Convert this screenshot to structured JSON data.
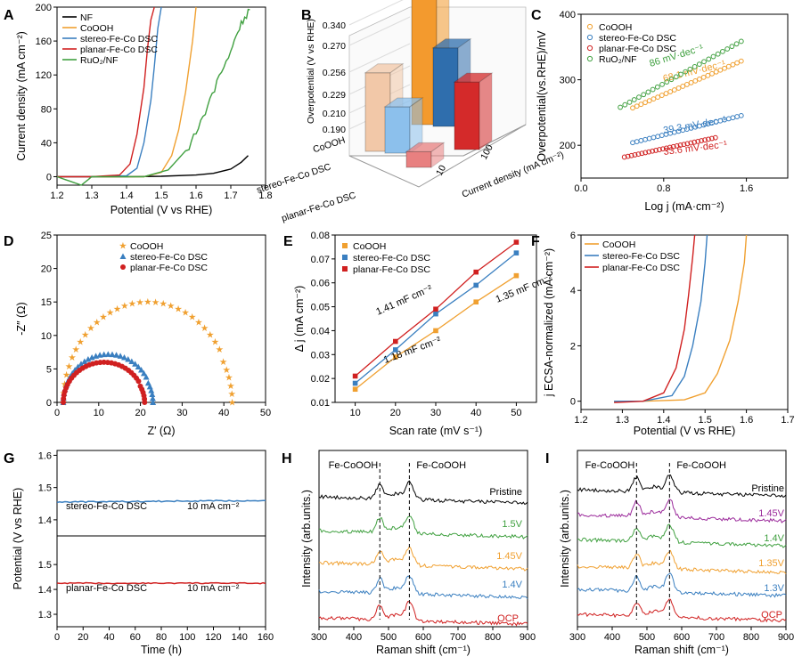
{
  "panels": {
    "A": {
      "label": "A",
      "xlabel": "Potential (V vs RHE)",
      "ylabel": "Current density (mA cm⁻²)",
      "xticks": [
        "1.2",
        "1.3",
        "1.4",
        "1.5",
        "1.6",
        "1.7",
        "1.8"
      ],
      "yticks": [
        "0",
        "40",
        "80",
        "120",
        "160",
        "200"
      ]
    },
    "B": {
      "label": "B",
      "zlabel": "Overpotential (V vs RHE)",
      "zticks": [
        "0.190",
        "0.210",
        "0.229",
        "0.256",
        "0.270",
        "0.340"
      ],
      "categories": [
        "CoOOH",
        "stereo-Fe-Co DSC",
        "planar-Fe-Co DSC"
      ],
      "depth_ticks": [
        "10",
        "100"
      ],
      "depth_label": "Current density (mA cm⁻²)"
    },
    "C": {
      "label": "C",
      "xlabel": "Log j (mA·cm⁻²)",
      "ylabel": "Overpotential(vs.RHE)/mV",
      "xticks": [
        "0.0",
        "0.8",
        "1.6"
      ],
      "yticks": [
        "200",
        "300",
        "400"
      ]
    },
    "D": {
      "label": "D",
      "xlabel": "Z′ (Ω)",
      "ylabel": "-Z″ (Ω)",
      "xticks": [
        "0",
        "10",
        "20",
        "30",
        "40",
        "50"
      ],
      "yticks": [
        "0",
        "5",
        "10",
        "15",
        "20",
        "25"
      ]
    },
    "E": {
      "label": "E",
      "xlabel": "Scan rate (mV s⁻¹)",
      "ylabel": "Δ j (mA cm⁻²)",
      "xticks": [
        "10",
        "20",
        "30",
        "40",
        "50"
      ],
      "yticks": [
        "0.01",
        "0.02",
        "0.03",
        "0.04",
        "0.05",
        "0.06",
        "0.07",
        "0.08"
      ]
    },
    "F": {
      "label": "F",
      "xlabel": "Potential (V vs RHE)",
      "ylabel": "j ECSA-normalized (mA cm⁻²)",
      "xticks": [
        "1.2",
        "1.3",
        "1.4",
        "1.5",
        "1.6",
        "1.7"
      ],
      "yticks": [
        "0",
        "2",
        "4",
        "6"
      ]
    },
    "G": {
      "label": "G",
      "xlabel": "Time (h)",
      "ylabel": "Potential (V vs RHE)",
      "xticks": [
        "0",
        "20",
        "40",
        "60",
        "80",
        "100",
        "120",
        "140",
        "160"
      ],
      "yticks_top": [
        "1.4",
        "1.5",
        "1.6"
      ],
      "yticks_bottom": [
        "1.3",
        "1.4",
        "1.5"
      ],
      "label_top": "stereo-Fe-Co DSC",
      "label_bottom": "planar-Fe-Co DSC",
      "current": "10 mA cm⁻²"
    },
    "H": {
      "label": "H",
      "xlabel": "Raman shift (cm⁻¹)",
      "ylabel": "Intensity (arb.units.)",
      "xticks": [
        "300",
        "400",
        "500",
        "600",
        "700",
        "800",
        "900"
      ],
      "peak_label": "Fe-CoOOH"
    },
    "I": {
      "label": "I",
      "xlabel": "Raman shift (cm⁻¹)",
      "ylabel": "Intensity (arb.units.)",
      "xticks": [
        "300",
        "400",
        "500",
        "600",
        "700",
        "800",
        "900"
      ],
      "peak_label": "Fe-CoOOH"
    }
  },
  "chart_data": [
    {
      "panel": "A",
      "type": "line",
      "xlim": [
        1.2,
        1.8
      ],
      "ylim": [
        -10,
        200
      ],
      "series": [
        {
          "name": "NF",
          "color": "#000000",
          "x": [
            1.2,
            1.3,
            1.4,
            1.5,
            1.6,
            1.65,
            1.7,
            1.73,
            1.75
          ],
          "y": [
            0,
            0,
            0,
            0.5,
            2,
            4,
            9,
            17,
            25
          ]
        },
        {
          "name": "CoOOH",
          "color": "#f0a030",
          "x": [
            1.2,
            1.3,
            1.45,
            1.5,
            1.53,
            1.55,
            1.57,
            1.59,
            1.6
          ],
          "y": [
            0,
            0,
            0,
            5,
            25,
            55,
            100,
            160,
            200
          ]
        },
        {
          "name": "stereo-Fe-Co DSC",
          "color": "#3a7fc0",
          "x": [
            1.2,
            1.3,
            1.4,
            1.43,
            1.45,
            1.47,
            1.48,
            1.49,
            1.5
          ],
          "y": [
            0,
            0,
            1,
            10,
            40,
            90,
            130,
            175,
            200
          ]
        },
        {
          "name": "planar-Fe-Co DSC",
          "color": "#d02020",
          "x": [
            1.2,
            1.3,
            1.38,
            1.41,
            1.43,
            1.45,
            1.46,
            1.47,
            1.48
          ],
          "y": [
            0,
            0,
            2,
            15,
            50,
            105,
            150,
            185,
            200
          ]
        },
        {
          "name": "RuO₂/NF",
          "color": "#40a040",
          "x": [
            1.2,
            1.27,
            1.3,
            1.45,
            1.52,
            1.58,
            1.62,
            1.66,
            1.7,
            1.73,
            1.76
          ],
          "y": [
            0,
            -10,
            0,
            0,
            8,
            35,
            70,
            110,
            150,
            180,
            200
          ]
        }
      ]
    },
    {
      "panel": "B",
      "type": "bar3d",
      "series": [
        {
          "category": "CoOOH",
          "values": [
            0.27,
            0.34
          ],
          "colors": [
            "#f2c8a8",
            "#f39a2e"
          ]
        },
        {
          "category": "stereo-Fe-Co DSC",
          "values": [
            0.229,
            0.27
          ],
          "colors": [
            "#8cc0ec",
            "#2f6ead"
          ]
        },
        {
          "category": "planar-Fe-Co DSC",
          "values": [
            0.19,
            0.256
          ],
          "colors": [
            "#e88080",
            "#d42a2a"
          ]
        }
      ]
    },
    {
      "panel": "C",
      "type": "scatter",
      "xlim": [
        0,
        2.0
      ],
      "ylim": [
        150,
        400
      ],
      "series": [
        {
          "name": "CoOOH",
          "color": "#f0a030",
          "x0": 0.5,
          "x1": 1.55,
          "slope": 68.1,
          "y0": 257,
          "label": "68.1 mV·dec⁻¹"
        },
        {
          "name": "stereo-Fe-Co DSC",
          "color": "#3a7fc0",
          "x0": 0.5,
          "x1": 1.55,
          "slope": 39.3,
          "y0": 204,
          "label": "39.3 mV·dec⁻¹"
        },
        {
          "name": "planar-Fe-Co DSC",
          "color": "#d02020",
          "x0": 0.42,
          "x1": 1.3,
          "slope": 33.6,
          "y0": 182,
          "label": "33.6 mV·dec⁻¹"
        },
        {
          "name": "RuO₂/NF",
          "color": "#40a040",
          "x0": 0.38,
          "x1": 1.55,
          "slope": 86,
          "y0": 258,
          "label": "86 mV·dec⁻¹"
        }
      ]
    },
    {
      "panel": "D",
      "type": "scatter",
      "xlim": [
        0,
        50
      ],
      "ylim": [
        0,
        25
      ],
      "series": [
        {
          "name": "CoOOH",
          "color": "#f0a030",
          "marker": "star",
          "x0": 1.5,
          "x1": 42,
          "height": 15
        },
        {
          "name": "stereo-Fe-Co DSC",
          "color": "#3a7fc0",
          "marker": "triangle",
          "x0": 1.5,
          "x1": 23,
          "height": 7.2
        },
        {
          "name": "planar-Fe-Co DSC",
          "color": "#d02020",
          "marker": "circle",
          "x0": 1.5,
          "x1": 21,
          "height": 6.0
        }
      ]
    },
    {
      "panel": "E",
      "type": "line",
      "xlim": [
        5,
        55
      ],
      "ylim": [
        0.01,
        0.08
      ],
      "x": [
        10,
        20,
        30,
        40,
        50
      ],
      "series": [
        {
          "name": "CoOOH",
          "color": "#f0a030",
          "values": [
            0.0155,
            0.029,
            0.04,
            0.052,
            0.063
          ],
          "label": "1.18 mF cm⁻²"
        },
        {
          "name": "stereo-Fe-Co DSC",
          "color": "#3a7fc0",
          "values": [
            0.018,
            0.032,
            0.047,
            0.059,
            0.0725
          ],
          "label": "1.35 mF cm⁻²"
        },
        {
          "name": "planar-Fe-Co DSC",
          "color": "#d02020",
          "values": [
            0.021,
            0.0355,
            0.049,
            0.0645,
            0.077
          ],
          "label": "1.41 mF cm⁻²"
        }
      ]
    },
    {
      "panel": "F",
      "type": "line",
      "xlim": [
        1.2,
        1.7
      ],
      "ylim": [
        -0.3,
        6
      ],
      "series": [
        {
          "name": "CoOOH",
          "color": "#f0a030",
          "x": [
            1.28,
            1.35,
            1.45,
            1.5,
            1.53,
            1.56,
            1.58,
            1.595,
            1.6
          ],
          "y": [
            0,
            0,
            0.05,
            0.3,
            1,
            2.2,
            3.6,
            5,
            6
          ]
        },
        {
          "name": "stereo-Fe-Co DSC",
          "color": "#3a7fc0",
          "x": [
            1.28,
            1.35,
            1.42,
            1.45,
            1.47,
            1.49,
            1.5,
            1.505
          ],
          "y": [
            0,
            0,
            0.2,
            0.9,
            2,
            3.6,
            5,
            6
          ]
        },
        {
          "name": "planar-Fe-Co DSC",
          "color": "#d02020",
          "x": [
            1.28,
            1.35,
            1.4,
            1.43,
            1.45,
            1.46,
            1.47,
            1.475
          ],
          "y": [
            -0.05,
            0,
            0.3,
            1.2,
            2.6,
            3.8,
            5.2,
            6
          ]
        }
      ]
    },
    {
      "panel": "G",
      "type": "line",
      "xlim": [
        0,
        160
      ],
      "series": [
        {
          "name": "stereo-Fe-Co DSC",
          "color": "#3a7fc0",
          "level": 1.455,
          "ylim": [
            1.35,
            1.6
          ]
        },
        {
          "name": "planar-Fe-Co DSC",
          "color": "#d02020",
          "level": 1.425,
          "ylim": [
            1.25,
            1.6
          ]
        }
      ]
    },
    {
      "panel": "H",
      "type": "line",
      "xlim": [
        300,
        900
      ],
      "series": [
        {
          "name": "Pristine",
          "color": "#000000"
        },
        {
          "name": "1.5V",
          "color": "#40a040"
        },
        {
          "name": "1.45V",
          "color": "#f0a030"
        },
        {
          "name": "1.4V",
          "color": "#3a7fc0"
        },
        {
          "name": "OCP",
          "color": "#d02020"
        }
      ],
      "peaks": [
        475,
        560
      ]
    },
    {
      "panel": "I",
      "type": "line",
      "xlim": [
        300,
        900
      ],
      "series": [
        {
          "name": "Pristine",
          "color": "#000000"
        },
        {
          "name": "1.45V",
          "color": "#9b2a9b"
        },
        {
          "name": "1.4V",
          "color": "#40a040"
        },
        {
          "name": "1.35V",
          "color": "#f0a030"
        },
        {
          "name": "1.3V",
          "color": "#3a7fc0"
        },
        {
          "name": "OCP",
          "color": "#d02020"
        }
      ],
      "peaks": [
        470,
        565
      ]
    }
  ]
}
